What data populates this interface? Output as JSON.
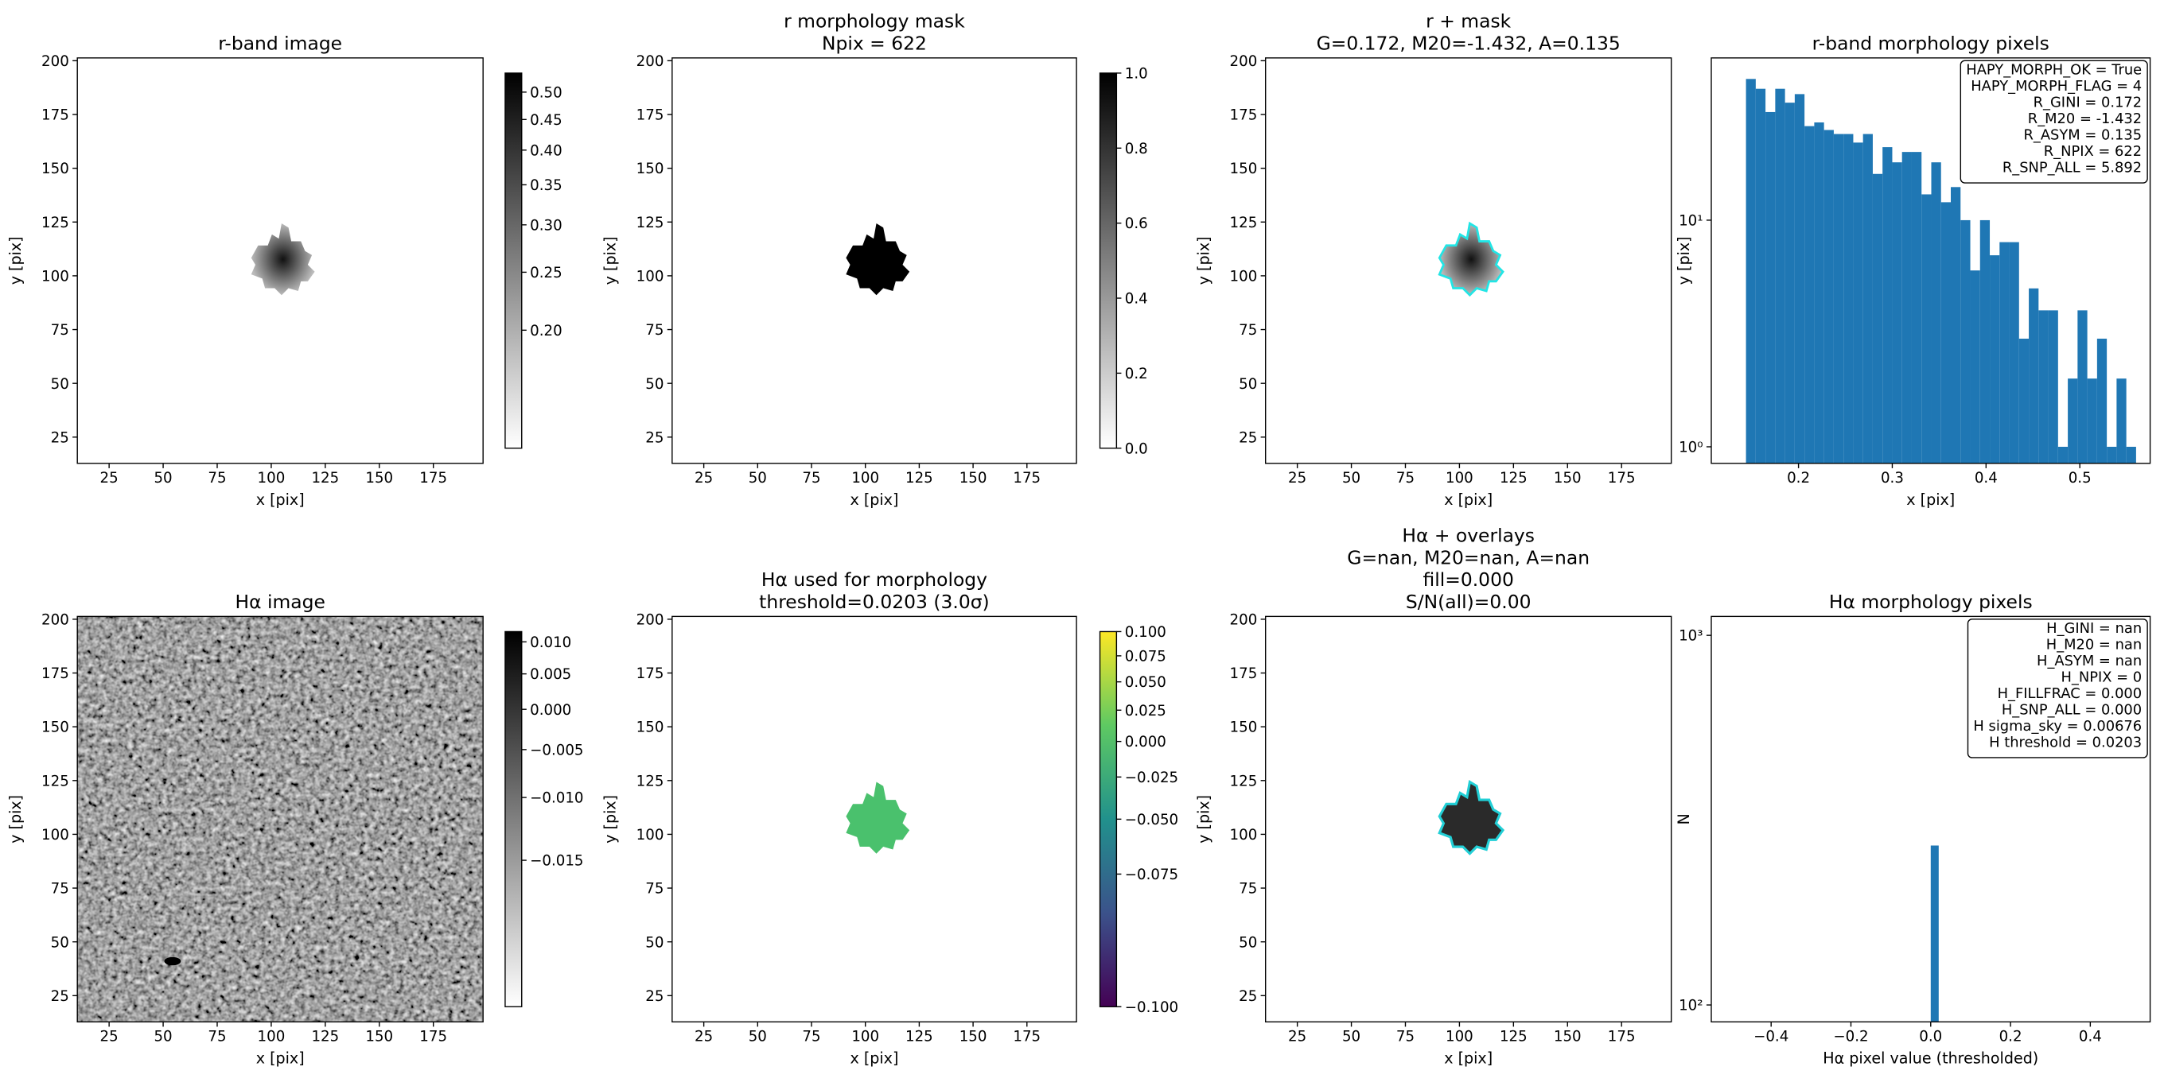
{
  "chart_data": [
    {
      "type": "image",
      "title": [
        "r-band image"
      ],
      "xlabel": "x [pix]",
      "ylabel": "y [pix]",
      "xlim": [
        10.3,
        198
      ],
      "ylim": [
        12.8,
        201.3
      ],
      "xticks": [
        25,
        50,
        75,
        100,
        125,
        150,
        175
      ],
      "yticks": [
        25,
        50,
        75,
        100,
        125,
        150,
        175,
        200
      ],
      "colorbar": {
        "cmap": "gray_r",
        "scale": "log",
        "lim": [
          0.127,
          0.538
        ],
        "ticks": [
          {
            "value": 0.2,
            "label": "0.20"
          },
          0.25,
          {
            "value": 0.3,
            "label": "0.30"
          },
          0.35,
          {
            "value": 0.4,
            "label": "0.40"
          },
          0.45,
          {
            "value": 0.5,
            "label": "0.50"
          }
        ]
      }
    },
    {
      "type": "image",
      "title": [
        "r morphology mask",
        "Npix = 622"
      ],
      "xlabel": "x [pix]",
      "ylabel": "y [pix]",
      "xlim": [
        10.3,
        198
      ],
      "ylim": [
        12.8,
        201.3
      ],
      "xticks": [
        25,
        50,
        75,
        100,
        125,
        150,
        175
      ],
      "yticks": [
        25,
        50,
        75,
        100,
        125,
        150,
        175,
        200
      ],
      "colorbar": {
        "cmap": "gray_r",
        "scale": "linear",
        "lim": [
          0,
          1
        ],
        "ticks": [
          {
            "value": 0,
            "label": "0.0"
          },
          0.2,
          0.4,
          0.6,
          0.8,
          {
            "value": 1,
            "label": "1.0"
          }
        ]
      }
    },
    {
      "type": "image",
      "title": [
        "r + mask",
        "G=0.172, M20=-1.432, A=0.135"
      ],
      "xlabel": "x [pix]",
      "ylabel": "y [pix]",
      "xlim": [
        10.3,
        198
      ],
      "ylim": [
        12.8,
        201.3
      ],
      "xticks": [
        25,
        50,
        75,
        100,
        125,
        150,
        175
      ],
      "yticks": [
        25,
        50,
        75,
        100,
        125,
        150,
        175,
        200
      ]
    },
    {
      "type": "histogram",
      "title": [
        "r-band morphology pixels"
      ],
      "xlabel": "x [pix]",
      "ylabel": "y [pix]",
      "bins": [
        0.144,
        0.1544,
        0.1648,
        0.1752,
        0.1856,
        0.196,
        0.2064,
        0.2168,
        0.2272,
        0.2376,
        0.248,
        0.2584,
        0.2688,
        0.2792,
        0.2896,
        0.3,
        0.3104,
        0.3208,
        0.3312,
        0.3416,
        0.352,
        0.3624,
        0.3728,
        0.3832,
        0.3936,
        0.404,
        0.4144,
        0.4248,
        0.4352,
        0.4456,
        0.456,
        0.4664,
        0.4768,
        0.4872,
        0.4976,
        0.508,
        0.5184,
        0.5288,
        0.5392,
        0.5496,
        0.56
      ],
      "values": [
        42,
        38,
        30,
        38,
        33,
        36,
        26,
        27,
        25,
        24,
        24,
        22,
        24,
        16,
        21,
        18,
        20,
        20,
        13,
        18,
        12,
        14,
        10,
        6,
        10,
        7,
        8,
        8,
        3,
        5,
        4,
        4,
        1,
        2,
        4,
        2,
        3,
        1,
        2,
        1
      ],
      "color": "#1f77b4",
      "xlim": [
        0.107,
        0.575
      ],
      "ylim": [
        0.845,
        52
      ],
      "yscale": "log",
      "xticks": [
        0.2,
        0.3,
        0.4,
        0.5
      ],
      "yticks": [
        {
          "value": 1,
          "label": "10⁰"
        },
        {
          "value": 10,
          "label": "10¹"
        }
      ],
      "textbox": {
        "loc": "upper right",
        "lines": [
          "HAPY_MORPH_OK = True",
          "HAPY_MORPH_FLAG = 4",
          "R_GINI = 0.172",
          "R_M20 = -1.432",
          "R_ASYM = 0.135",
          "R_NPIX = 622",
          "R_SNP_ALL = 5.892"
        ]
      }
    },
    {
      "type": "image",
      "title": [
        "Hα image"
      ],
      "xlabel": "x [pix]",
      "ylabel": "y [pix]",
      "xlim": [
        10.3,
        198
      ],
      "ylim": [
        12.8,
        201.3
      ],
      "xticks": [
        25,
        50,
        75,
        100,
        125,
        150,
        175
      ],
      "yticks": [
        25,
        50,
        75,
        100,
        125,
        150,
        175,
        200
      ],
      "colorbar": {
        "cmap": "gray_r",
        "scale": "sqrt",
        "lim": [
          -0.0198,
          0.0117
        ],
        "ticks": [
          {
            "value": -0.015,
            "label": "−0.015"
          },
          {
            "value": -0.01,
            "label": "−0.010"
          },
          {
            "value": -0.005,
            "label": "−0.005"
          },
          {
            "value": 0,
            "label": "0.000"
          },
          0.005,
          {
            "value": 0.01,
            "label": "0.010"
          }
        ]
      }
    },
    {
      "type": "image",
      "title": [
        "Hα used for morphology",
        "threshold=0.0203 (3.0σ)"
      ],
      "xlabel": "x [pix]",
      "ylabel": "y [pix]",
      "xlim": [
        10.3,
        198
      ],
      "ylim": [
        12.8,
        201.3
      ],
      "xticks": [
        25,
        50,
        75,
        100,
        125,
        150,
        175
      ],
      "yticks": [
        25,
        50,
        75,
        100,
        125,
        150,
        175,
        200
      ],
      "colorbar": {
        "cmap": "viridis",
        "scale": "sqrt",
        "lim": [
          -0.1,
          0.1
        ],
        "ticks": [
          {
            "value": -0.1,
            "label": "−0.100"
          },
          {
            "value": -0.075,
            "label": "−0.075"
          },
          {
            "value": -0.05,
            "label": "−0.050"
          },
          {
            "value": -0.025,
            "label": "−0.025"
          },
          {
            "value": 0,
            "label": "0.000"
          },
          0.025,
          {
            "value": 0.05,
            "label": "0.050"
          },
          0.075,
          {
            "value": 0.1,
            "label": "0.100"
          }
        ]
      }
    },
    {
      "type": "image",
      "title": [
        "Hα + overlays",
        "G=nan, M20=nan, A=nan",
        "fill=0.000",
        "S/N(all)=0.00"
      ],
      "xlabel": "x [pix]",
      "ylabel": "y [pix]",
      "xlim": [
        10.3,
        198
      ],
      "ylim": [
        12.8,
        201.3
      ],
      "xticks": [
        25,
        50,
        75,
        100,
        125,
        150,
        175
      ],
      "yticks": [
        25,
        50,
        75,
        100,
        125,
        150,
        175,
        200
      ]
    },
    {
      "type": "histogram",
      "title": [
        "Hα morphology pixels"
      ],
      "xlabel": "Hα pixel value (thresholded)",
      "ylabel": "N",
      "bins": [
        0,
        0.02
      ],
      "values": [
        270
      ],
      "color": "#1f77b4",
      "xlim": [
        -0.55,
        0.55
      ],
      "ylim": [
        90,
        1125
      ],
      "yscale": "log",
      "xticks": [
        {
          "value": -0.4,
          "label": "−0.4"
        },
        {
          "value": -0.2,
          "label": "−0.2"
        },
        {
          "value": 0,
          "label": "0.0"
        },
        0.2,
        0.4
      ],
      "yticks": [
        {
          "value": 100,
          "label": "10²"
        },
        {
          "value": 1000,
          "label": "10³"
        }
      ],
      "textbox": {
        "loc": "upper right",
        "lines": [
          "H_GINI = nan",
          "H_M20 = nan",
          "H_ASYM = nan",
          "H_NPIX = 0",
          "H_FILLFRAC = 0.000",
          "H_SNP_ALL = 0.000",
          "H sigma_sky = 0.00676",
          "H threshold = 0.0203"
        ]
      }
    }
  ]
}
